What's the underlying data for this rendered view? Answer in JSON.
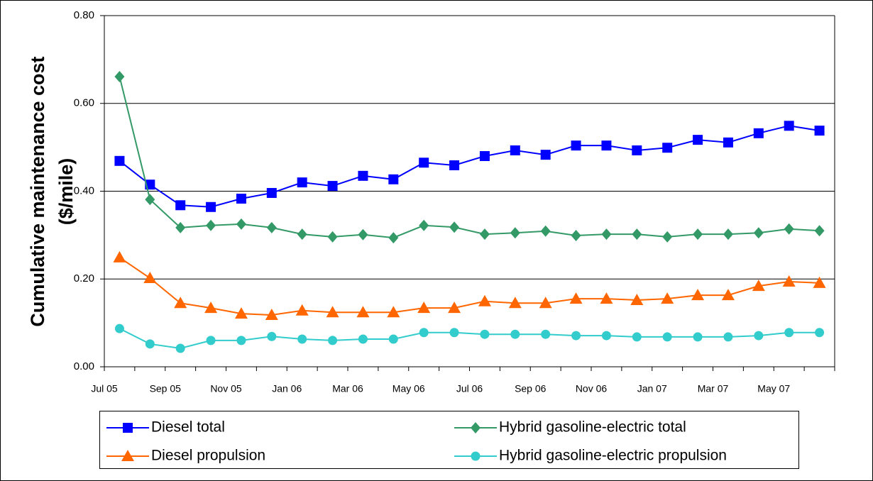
{
  "chart_data": {
    "type": "line",
    "ylabel": [
      "Cumulative maintenance cost",
      "($/mile)"
    ],
    "categories": [
      "Jul 05",
      null,
      "Sep 05",
      null,
      "Nov 05",
      null,
      "Jan 06",
      null,
      "Mar 06",
      null,
      "May 06",
      null,
      "Jul 06",
      null,
      "Sep 06",
      null,
      "Nov 06",
      null,
      "Jan 07",
      null,
      "Mar 07",
      null,
      "May 07",
      null
    ],
    "ylim": [
      0,
      0.8
    ],
    "yticks": [
      {
        "value": 0,
        "label": "0.00"
      },
      {
        "value": 0.2,
        "label": "0.20"
      },
      {
        "value": 0.4,
        "label": "0.40"
      },
      {
        "value": 0.6,
        "label": "0.60"
      },
      {
        "value": 0.8,
        "label": "0.80"
      }
    ],
    "grid": true,
    "series": [
      {
        "name": "Diesel total",
        "color": "#0000ff",
        "marker": "square",
        "values": [
          0.469,
          0.415,
          0.368,
          0.364,
          0.383,
          0.396,
          0.42,
          0.412,
          0.435,
          0.427,
          0.465,
          0.459,
          0.48,
          0.493,
          0.483,
          0.504,
          0.504,
          0.493,
          0.499,
          0.517,
          0.511,
          0.532,
          0.549,
          0.538
        ]
      },
      {
        "name": "Hybrid gasoline-electric total",
        "color": "#339966",
        "marker": "diamond",
        "values": [
          0.661,
          0.381,
          0.317,
          0.322,
          0.325,
          0.317,
          0.302,
          0.296,
          0.301,
          0.294,
          0.322,
          0.318,
          0.302,
          0.305,
          0.309,
          0.299,
          0.302,
          0.302,
          0.296,
          0.302,
          0.302,
          0.305,
          0.314,
          0.31
        ]
      },
      {
        "name": "Diesel propulsion",
        "color": "#ff6600",
        "marker": "triangle",
        "values": [
          0.249,
          0.202,
          0.145,
          0.134,
          0.121,
          0.118,
          0.128,
          0.124,
          0.124,
          0.124,
          0.134,
          0.134,
          0.149,
          0.145,
          0.145,
          0.155,
          0.155,
          0.152,
          0.155,
          0.163,
          0.163,
          0.184,
          0.194,
          0.191
        ]
      },
      {
        "name": "Hybrid gasoline-electric propulsion",
        "color": "#33cccc",
        "marker": "circle",
        "values": [
          0.087,
          0.052,
          0.042,
          0.06,
          0.06,
          0.069,
          0.063,
          0.06,
          0.063,
          0.063,
          0.078,
          0.078,
          0.074,
          0.074,
          0.074,
          0.071,
          0.071,
          0.068,
          0.068,
          0.068,
          0.068,
          0.071,
          0.078,
          0.078
        ]
      }
    ]
  }
}
